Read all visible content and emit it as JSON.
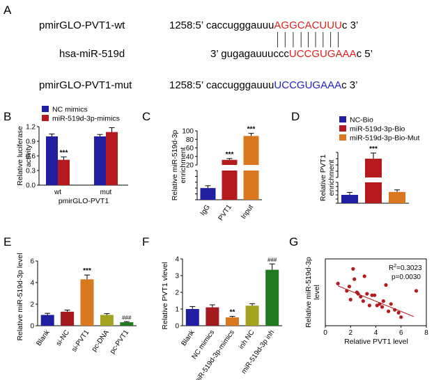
{
  "colors": {
    "blue": "#1f1fa0",
    "red": "#b51a1f",
    "orange": "#d9781f",
    "olive": "#a3a31f",
    "green": "#1f7a1f",
    "dark_red": "#a31a1f",
    "seq_red": "#e0201e",
    "seq_blue": "#2020c8"
  },
  "panel_a": {
    "label": "A",
    "rows": [
      {
        "name": "pmirGLO-PVT1-wt",
        "prefix": "1258:5’ caccugggauuu",
        "highlight": "AGGCACUUU",
        "suffix": "c 3’",
        "color": "#e0201e"
      },
      {
        "name": "hsa-miR-519d",
        "prefix": "3’ gugagauuuccc",
        "highlight": "UCCGUGAAA",
        "suffix": "c 5’",
        "color": "#e0201e"
      },
      {
        "name": "pmirGLO-PVT1-mut",
        "prefix": "1258:5’ caccugggauuu",
        "highlight": "UCCGUGAAA",
        "suffix": "c 3’",
        "color": "#2020c8"
      }
    ]
  },
  "chart_data": [
    {
      "id": "B",
      "type": "bar",
      "categories": [
        "wt",
        "mut"
      ],
      "series": [
        {
          "name": "NC mimics",
          "values": [
            1.0,
            1.0
          ],
          "errors": [
            0.05,
            0.04
          ],
          "color": "#1f1fa0"
        },
        {
          "name": "miR-519d-3p-mimics",
          "values": [
            0.52,
            1.09
          ],
          "errors": [
            0.06,
            0.09
          ],
          "color": "#b51a1f"
        }
      ],
      "annotations": [
        {
          "category": 0,
          "series": 1,
          "text": "***"
        }
      ],
      "xlabel": "pmirGLO-PVT1",
      "ylabel": "Relative luciferase activity",
      "ylim": [
        0.0,
        1.2
      ],
      "yticks": [
        "0.0",
        "0.3",
        "0.6",
        "0.9",
        "1.2"
      ],
      "legend": "top-left"
    },
    {
      "id": "C",
      "type": "bar",
      "categories": [
        "IgG",
        "PVT1",
        "Input"
      ],
      "values": [
        1.0,
        32,
        88
      ],
      "errors": [
        0.2,
        3,
        6
      ],
      "colors": [
        "#1f1fa0",
        "#b51a1f",
        "#d9781f"
      ],
      "annotations": [
        "",
        "***",
        "***"
      ],
      "ylabel": "Relative miR-519d-3p enrichment",
      "axis_break": true,
      "ylim_lower": [
        0,
        2.5
      ],
      "ylim_upper": [
        20,
        100
      ],
      "yticks_lower": [
        "0.0",
        "0.5",
        "1.0",
        "1.5",
        "2.0",
        "2.5"
      ],
      "yticks_upper": [
        "20",
        "40",
        "60",
        "80",
        "100"
      ]
    },
    {
      "id": "D",
      "type": "bar",
      "categories": [
        "NC-Bio",
        "miR-519d-3p-Bio",
        "miR-519d-3p-Bio-Mut"
      ],
      "values": [
        1.0,
        35,
        1.35
      ],
      "errors": [
        0.3,
        4.5,
        0.25
      ],
      "colors": [
        "#1f1fa0",
        "#b51a1f",
        "#d9781f"
      ],
      "annotations": [
        "",
        "***",
        ""
      ],
      "ylabel": "Relative PVT1 enrichment",
      "axis_break": true,
      "ylim_lower": [
        0,
        2.5
      ],
      "ylim_upper": [
        20,
        40
      ],
      "yticks_lower": [
        "0.0",
        "0.5",
        "1.0",
        "1.5",
        "2.0",
        "2.5"
      ],
      "yticks_upper": [
        "20",
        "25",
        "30",
        "35",
        "40"
      ],
      "legend": "top-left"
    },
    {
      "id": "E",
      "type": "bar",
      "categories": [
        "Blank",
        "si-NC",
        "si-PVT1",
        "pc-DNA",
        "pc-PVT1"
      ],
      "values": [
        1.0,
        1.3,
        4.3,
        1.0,
        0.32
      ],
      "errors": [
        0.15,
        0.15,
        0.4,
        0.12,
        0.06
      ],
      "colors": [
        "#1f1fa0",
        "#a31a1f",
        "#d9781f",
        "#a3a31f",
        "#1f7a1f"
      ],
      "annotations": [
        "",
        "",
        "***",
        "",
        "###"
      ],
      "ylabel": "Relative miR-519d-3p level",
      "ylim": [
        0,
        6
      ],
      "yticks": [
        "0",
        "2",
        "4",
        "6"
      ]
    },
    {
      "id": "F",
      "type": "bar",
      "categories": [
        "Blank",
        "NC mimics",
        "miR-519d-3p-mimics",
        "inh NC",
        "miR-519d-3p inh"
      ],
      "values": [
        1.0,
        1.1,
        0.5,
        1.2,
        3.35
      ],
      "errors": [
        0.15,
        0.15,
        0.06,
        0.12,
        0.35
      ],
      "colors": [
        "#1f1fa0",
        "#a31a1f",
        "#d9781f",
        "#a3a31f",
        "#1f7a1f"
      ],
      "annotations": [
        "",
        "",
        "**",
        "",
        "###"
      ],
      "ylabel": "Relative PVT1 vlevel",
      "ylim": [
        0,
        4
      ],
      "yticks": [
        "0",
        "1",
        "2",
        "3",
        "4"
      ]
    },
    {
      "id": "G",
      "type": "scatter",
      "x": [
        1.0,
        1.7,
        1.9,
        2.0,
        2.2,
        2.3,
        2.5,
        2.6,
        2.8,
        3.0,
        3.1,
        3.3,
        3.5,
        3.7,
        3.9,
        4.1,
        4.3,
        4.5,
        4.6,
        4.8,
        5.0,
        5.2,
        5.5,
        5.8,
        6.0,
        7.2
      ],
      "y": [
        1.3,
        1.05,
        1.2,
        0.75,
        1.8,
        1.45,
        1.0,
        0.95,
        0.85,
        0.7,
        1.55,
        0.95,
        0.55,
        0.9,
        0.9,
        0.55,
        0.6,
        0.5,
        0.7,
        1.25,
        0.35,
        0.6,
        0.4,
        0.3,
        0.15,
        1.05
      ],
      "fit": {
        "x": [
          1.0,
          7.0
        ],
        "y": [
          1.22,
          0.17
        ]
      },
      "color": "#b51a1f",
      "r2_label": "R",
      "r2_value": "=0.3023",
      "p_label": "p=0.0030",
      "xlabel": "Relative PVT1 level",
      "ylabel": "Relative miR-519d-3p level",
      "xlim": [
        0,
        8
      ],
      "xticks": [
        "0",
        "2",
        "4",
        "6",
        "8"
      ]
    }
  ]
}
